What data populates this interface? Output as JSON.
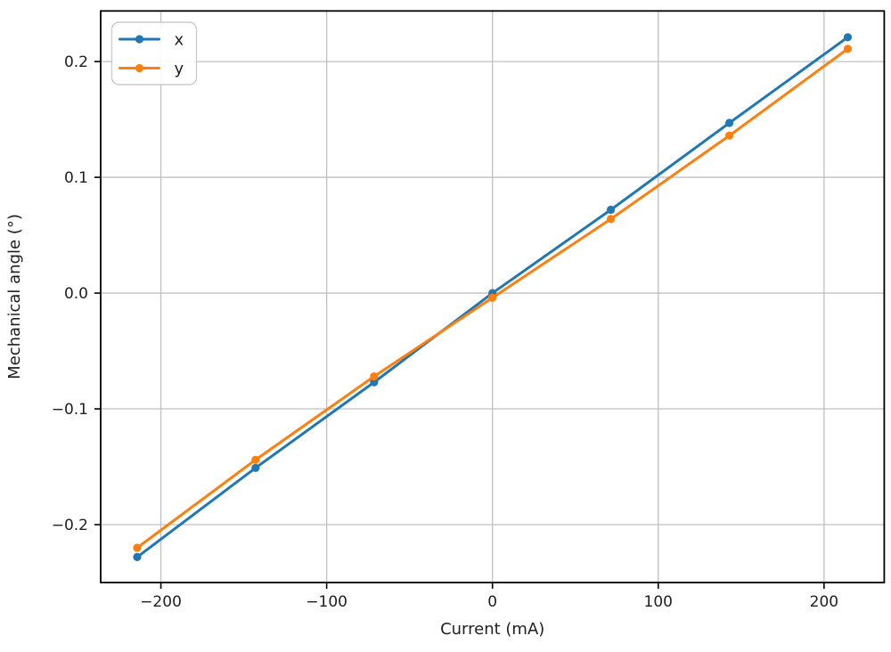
{
  "figure": {
    "type": "line-chart",
    "background": "#ffffff"
  },
  "chart_data": {
    "type": "line",
    "title": "",
    "xlabel": "Current (mA)",
    "ylabel": "Mechanical angle (°)",
    "x": [
      -214.3,
      -142.9,
      -71.4,
      0.0,
      71.4,
      142.9,
      214.3
    ],
    "series": [
      {
        "name": "x",
        "color": "#1f77b4",
        "marker": "circle",
        "values": [
          -0.228,
          -0.151,
          -0.077,
          0.0,
          0.072,
          0.147,
          0.221
        ]
      },
      {
        "name": "y",
        "color": "#ff7f0e",
        "marker": "circle",
        "values": [
          -0.22,
          -0.144,
          -0.072,
          -0.004,
          0.064,
          0.136,
          0.211
        ]
      }
    ],
    "xticks": [
      -200,
      -100,
      0,
      100,
      200
    ],
    "yticks": [
      -0.2,
      -0.1,
      0.0,
      0.1,
      0.2
    ],
    "xtick_labels": [
      "−200",
      "−100",
      "0",
      "100",
      "200"
    ],
    "ytick_labels": [
      "−0.2",
      "−0.1",
      "0.0",
      "0.1",
      "0.2"
    ],
    "xlim": [
      -236.3,
      236.3
    ],
    "ylim": [
      -0.25,
      0.2437
    ],
    "grid": true,
    "legend_position": "upper left",
    "colors": {
      "grid": "#c0c0c0",
      "spine": "#000000",
      "text": "#1f1f1f",
      "legend_border": "#cccccc",
      "legend_background": "#ffffff"
    }
  }
}
